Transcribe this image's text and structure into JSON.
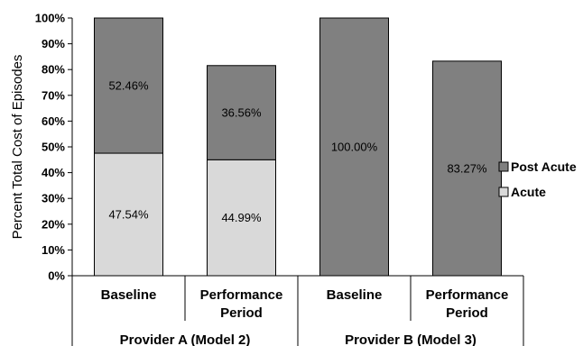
{
  "chart_data": {
    "type": "bar",
    "stacked": true,
    "ylabel": "Percent Total Cost of Episodes",
    "ylim": [
      0,
      100
    ],
    "yticks": [
      "0%",
      "10%",
      "20%",
      "30%",
      "40%",
      "50%",
      "60%",
      "70%",
      "80%",
      "90%",
      "100%"
    ],
    "categories": [
      "Baseline",
      "Performance Period",
      "Baseline",
      "Performance Period"
    ],
    "groups": [
      {
        "name": "Provider A (Model 2)",
        "categories": [
          0,
          1
        ]
      },
      {
        "name": "Provider B (Model 3)",
        "categories": [
          2,
          3
        ]
      }
    ],
    "series": [
      {
        "name": "Acute",
        "color": "#d9d9d9",
        "values": [
          47.54,
          44.99,
          0,
          0
        ],
        "labels": [
          "47.54%",
          "44.99%",
          "",
          ""
        ]
      },
      {
        "name": "Post Acute",
        "color": "#808080",
        "values": [
          52.46,
          36.56,
          100.0,
          83.27
        ],
        "labels": [
          "52.46%",
          "36.56%",
          "100.00%",
          "83.27%"
        ]
      }
    ],
    "legend": {
      "position": "right",
      "items": [
        {
          "name": "Post Acute",
          "color": "#808080"
        },
        {
          "name": "Acute",
          "color": "#d9d9d9"
        }
      ]
    },
    "grid": false
  }
}
